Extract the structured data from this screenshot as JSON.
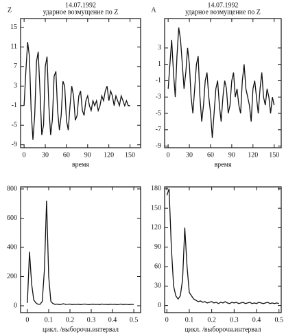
{
  "chart_data": [
    {
      "type": "line",
      "title": "14.07.1992",
      "subtitle": "ударное возмущение по Z",
      "y_label": "Z",
      "x_label": "время",
      "x": [
        0,
        2.5,
        5,
        7.5,
        10,
        12.5,
        15,
        17.5,
        20,
        22.5,
        25,
        27.5,
        30,
        32.5,
        35,
        37.5,
        40,
        42.5,
        45,
        47.5,
        50,
        52.5,
        55,
        57.5,
        60,
        62.5,
        65,
        67.5,
        70,
        72.5,
        75,
        77.5,
        80,
        82.5,
        85,
        87.5,
        90,
        92.5,
        95,
        97.5,
        100,
        102.5,
        105,
        107.5,
        110,
        112.5,
        115,
        117.5,
        120,
        122.5,
        125,
        127.5,
        130,
        132.5,
        135,
        137.5,
        140,
        142.5,
        145,
        147.5,
        150
      ],
      "values": [
        -1,
        6,
        12,
        9,
        -2,
        -8,
        -3,
        8,
        10,
        2,
        -7,
        -5,
        7,
        9,
        -1,
        -7,
        -4,
        5,
        6,
        -2,
        -6,
        -3,
        4,
        3,
        -4,
        -6,
        -1,
        3,
        1,
        -4,
        -3,
        1,
        2,
        -2,
        -3,
        0,
        1,
        -1,
        -2,
        0,
        -1,
        0,
        -2,
        -1,
        1,
        0,
        2,
        3,
        0,
        2,
        1,
        -1,
        1,
        0,
        -1,
        1,
        0,
        -1,
        0,
        -1,
        -1
      ],
      "color": "#111111",
      "xlim": [
        -5,
        165
      ],
      "ylim": [
        -9.6,
        16.8
      ],
      "xticks": [
        0,
        30,
        60,
        90,
        120,
        150
      ],
      "yticks": [
        15,
        11,
        7,
        3,
        -1,
        -5,
        -9
      ]
    },
    {
      "type": "line",
      "title": "14.07.1992",
      "subtitle": "ударное возмущение по Z",
      "y_label": "A",
      "x_label": "время",
      "x": [
        0,
        2.5,
        5,
        7.5,
        10,
        12.5,
        15,
        17.5,
        20,
        22.5,
        25,
        27.5,
        30,
        32.5,
        35,
        37.5,
        40,
        42.5,
        45,
        47.5,
        50,
        52.5,
        55,
        57.5,
        60,
        62.5,
        65,
        67.5,
        70,
        72.5,
        75,
        77.5,
        80,
        82.5,
        85,
        87.5,
        90,
        92.5,
        95,
        97.5,
        100,
        102.5,
        105,
        107.5,
        110,
        112.5,
        115,
        117.5,
        120,
        122.5,
        125,
        127.5,
        130,
        132.5,
        135,
        137.5,
        140,
        142.5,
        145,
        147.5,
        150
      ],
      "values": [
        -2,
        1,
        4,
        0,
        -3,
        2,
        5.5,
        4,
        1,
        -2,
        0,
        3,
        1,
        -3,
        -5,
        -2,
        1,
        2,
        -3,
        -6,
        -4,
        -1,
        0,
        -3,
        -5,
        -8,
        -5,
        -2,
        -1,
        -4,
        -6,
        -3,
        -1,
        -2,
        -5,
        -4,
        -1,
        0,
        -3,
        -2,
        -4,
        -5,
        -1,
        1,
        -2,
        -3,
        -4,
        -6,
        -2,
        -1,
        -3,
        -5,
        -2,
        0,
        -3,
        -4,
        -2,
        -3,
        -5,
        -3,
        -4
      ],
      "color": "#111111",
      "xlim": [
        -5,
        160
      ],
      "ylim": [
        -9.2,
        6.6
      ],
      "xticks": [
        0,
        30,
        60,
        90,
        120,
        150
      ],
      "yticks": [
        3,
        1,
        -1,
        -3,
        -5,
        -7,
        -9
      ]
    },
    {
      "type": "line",
      "x_label": "цикл. /выборочн.интервал",
      "x": [
        0,
        0.01,
        0.02,
        0.03,
        0.04,
        0.05,
        0.06,
        0.07,
        0.08,
        0.09,
        0.1,
        0.11,
        0.12,
        0.13,
        0.14,
        0.15,
        0.16,
        0.17,
        0.18,
        0.19,
        0.2,
        0.21,
        0.22,
        0.23,
        0.24,
        0.25,
        0.26,
        0.27,
        0.28,
        0.29,
        0.3,
        0.31,
        0.32,
        0.33,
        0.34,
        0.35,
        0.36,
        0.37,
        0.38,
        0.39,
        0.4,
        0.41,
        0.42,
        0.43,
        0.44,
        0.45,
        0.46,
        0.47,
        0.48,
        0.49,
        0.5
      ],
      "values": [
        20,
        370,
        150,
        40,
        20,
        10,
        10,
        30,
        250,
        720,
        200,
        30,
        15,
        10,
        12,
        8,
        10,
        14,
        9,
        10,
        12,
        8,
        10,
        9,
        11,
        8,
        10,
        12,
        9,
        8,
        10,
        11,
        9,
        10,
        8,
        12,
        9,
        10,
        8,
        11,
        9,
        10,
        8,
        9,
        12,
        8,
        10,
        9,
        8,
        10,
        9
      ],
      "color": "#111111",
      "xlim": [
        -0.032,
        0.532
      ],
      "ylim": [
        -47,
        814
      ],
      "xticks": [
        0,
        0.1,
        0.2,
        0.3,
        0.4,
        0.5
      ],
      "yticks": [
        0,
        200,
        400,
        600,
        800
      ]
    },
    {
      "type": "line",
      "x_label": "цикл. /выборочн.интервал",
      "x": [
        0,
        0.01,
        0.02,
        0.03,
        0.04,
        0.05,
        0.06,
        0.07,
        0.08,
        0.09,
        0.1,
        0.11,
        0.12,
        0.13,
        0.14,
        0.15,
        0.16,
        0.17,
        0.18,
        0.19,
        0.2,
        0.21,
        0.22,
        0.23,
        0.24,
        0.25,
        0.26,
        0.27,
        0.28,
        0.29,
        0.3,
        0.31,
        0.32,
        0.33,
        0.34,
        0.35,
        0.36,
        0.37,
        0.38,
        0.39,
        0.4,
        0.41,
        0.42,
        0.43,
        0.44,
        0.45,
        0.46,
        0.47,
        0.48,
        0.49,
        0.5
      ],
      "values": [
        170,
        180,
        90,
        30,
        15,
        10,
        15,
        40,
        120,
        60,
        20,
        15,
        10,
        8,
        6,
        7,
        5,
        6,
        4,
        5,
        6,
        4,
        5,
        3,
        5,
        4,
        6,
        4,
        3,
        5,
        4,
        5,
        3,
        4,
        5,
        3,
        4,
        5,
        3,
        4,
        3,
        5,
        4,
        3,
        4,
        5,
        3,
        4,
        3,
        4,
        3
      ],
      "color": "#111111",
      "xlim": [
        -0.01,
        0.51
      ],
      "ylim": [
        -11,
        183
      ],
      "xticks": [
        0,
        0.1,
        0.2,
        0.3,
        0.4,
        0.5
      ],
      "yticks": [
        0,
        30,
        60,
        90,
        120,
        150,
        180
      ]
    }
  ]
}
